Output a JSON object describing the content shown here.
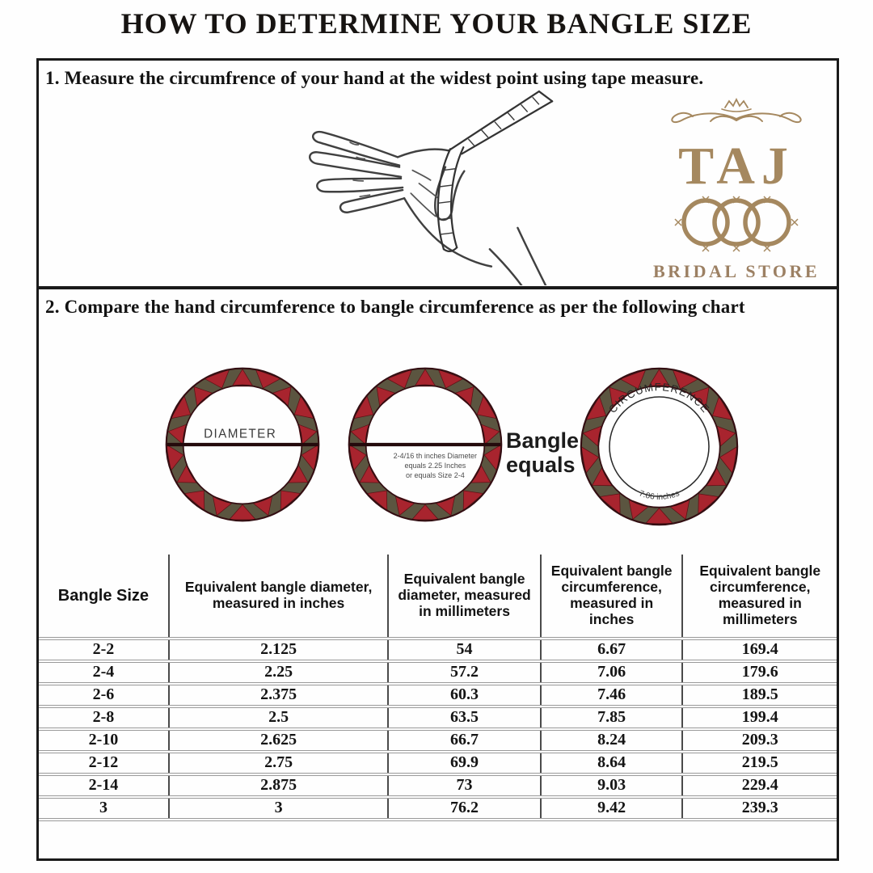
{
  "title": "HOW TO DETERMINE YOUR BANGLE SIZE",
  "steps": {
    "step1": "1. Measure the circumfrence of your hand at the widest point using tape measure.",
    "step2": "2. Compare the hand circumference to bangle circumference as per the following chart"
  },
  "logo": {
    "name": "TAJ",
    "subtitle": "BRIDAL STORE",
    "color": "#a5885f",
    "accent": "#9c8063"
  },
  "diagrams": {
    "diameter_label": "DIAMETER",
    "example_note_lines": [
      "2-4/16 th inches Diameter",
      "equals 2.25 Inches",
      "or equals Size 2-4"
    ],
    "equals_label_line1": "Bangle",
    "equals_label_line2": "equals",
    "circumference_label": "CIRCUMFERENCE",
    "circumference_value": "7.06 inches",
    "ring_red": "#a8242e",
    "ring_olive": "#5b5540",
    "ring_outline": "#330e12"
  },
  "table": {
    "columns": [
      "Bangle Size",
      "Equivalent bangle diameter, measured in inches",
      "Equivalent bangle diameter, measured in millimeters",
      "Equivalent bangle circumference, measured in inches",
      "Equivalent bangle circumference, measured in millimeters"
    ],
    "rows": [
      [
        "2-2",
        "2.125",
        "54",
        "6.67",
        "169.4"
      ],
      [
        "2-4",
        "2.25",
        "57.2",
        "7.06",
        "179.6"
      ],
      [
        "2-6",
        "2.375",
        "60.3",
        "7.46",
        "189.5"
      ],
      [
        "2-8",
        "2.5",
        "63.5",
        "7.85",
        "199.4"
      ],
      [
        "2-10",
        "2.625",
        "66.7",
        "8.24",
        "209.3"
      ],
      [
        "2-12",
        "2.75",
        "69.9",
        "8.64",
        "219.5"
      ],
      [
        "2-14",
        "2.875",
        "73",
        "9.03",
        "229.4"
      ],
      [
        "3",
        "3",
        "76.2",
        "9.42",
        "239.3"
      ]
    ]
  }
}
